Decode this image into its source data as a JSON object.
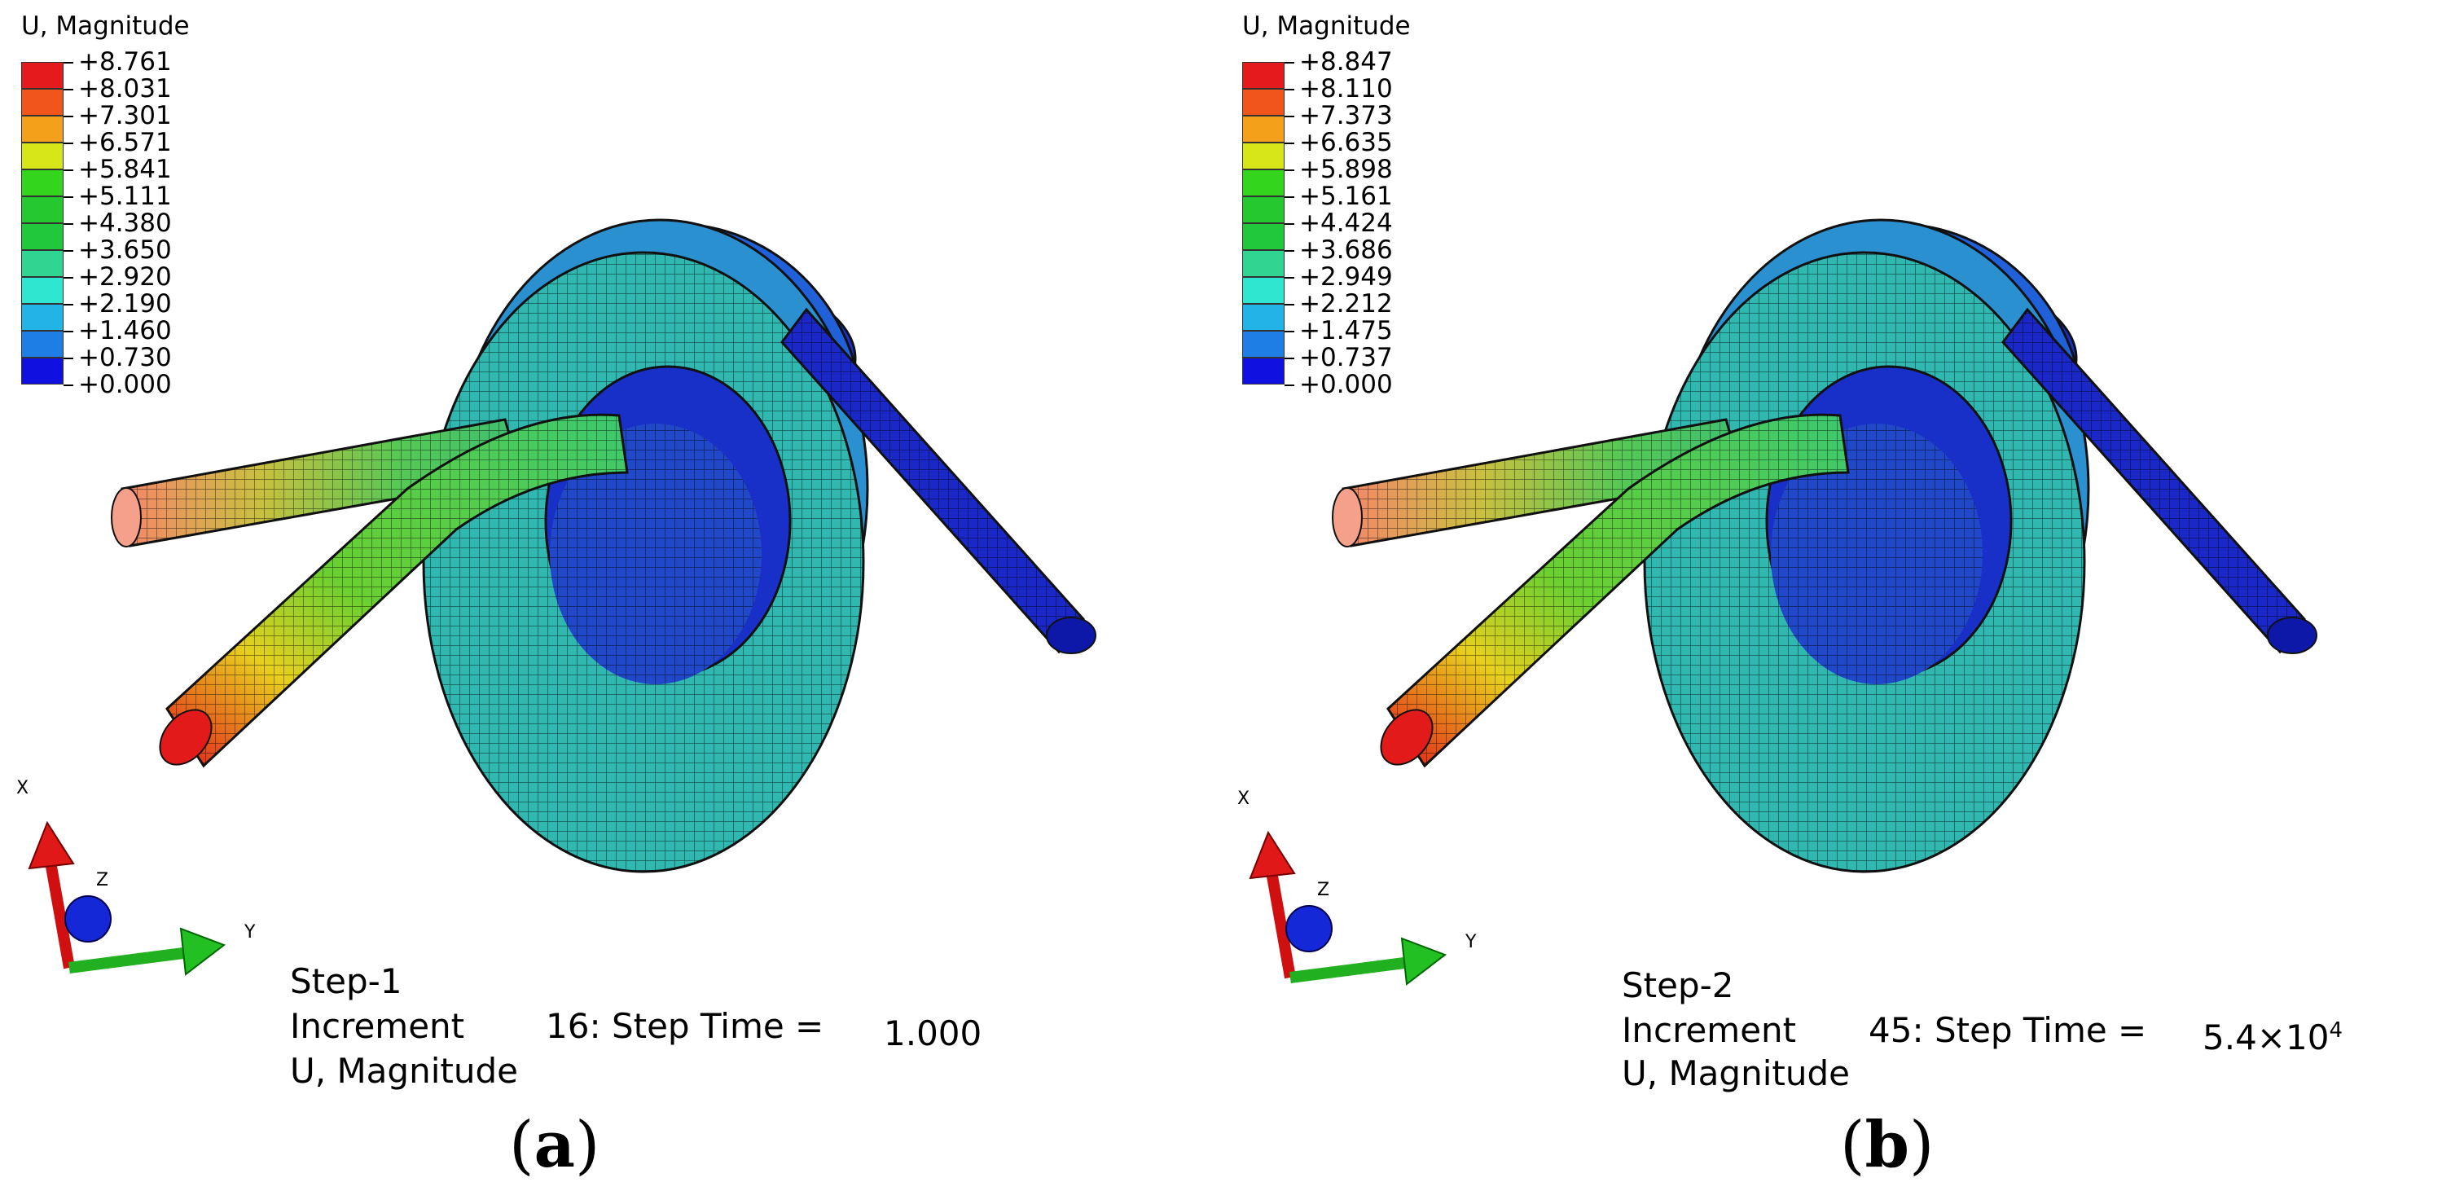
{
  "panels": [
    {
      "id": "a",
      "legend_title": "U, Magnitude",
      "legend_values": [
        "+8.761",
        "+8.031",
        "+7.301",
        "+6.571",
        "+5.841",
        "+5.111",
        "+4.380",
        "+3.650",
        "+2.920",
        "+2.190",
        "+1.460",
        "+0.730",
        "+0.000"
      ],
      "step": "Step-1",
      "increment_label": "Increment",
      "increment_text": "16: Step Time =",
      "step_time": "1.000",
      "step_time_exp": "",
      "variable": "U, Magnitude",
      "caption_open": "(",
      "caption_letter": "a",
      "caption_close": ")",
      "axes": {
        "x": "X",
        "y": "Y",
        "z": "Z"
      }
    },
    {
      "id": "b",
      "legend_title": "U, Magnitude",
      "legend_values": [
        "+8.847",
        "+8.110",
        "+7.373",
        "+6.635",
        "+5.898",
        "+5.161",
        "+4.424",
        "+3.686",
        "+2.949",
        "+2.212",
        "+1.475",
        "+0.737",
        "+0.000"
      ],
      "step": "Step-2",
      "increment_label": "Increment",
      "increment_text": "45: Step Time =",
      "step_time": "5.4×10",
      "step_time_exp": "4",
      "variable": "U, Magnitude",
      "caption_open": "(",
      "caption_letter": "b",
      "caption_close": ")",
      "axes": {
        "x": "X",
        "y": "Y",
        "z": "Z"
      }
    }
  ],
  "legend_colors": [
    "#e41a1c",
    "#f2551b",
    "#f4a01a",
    "#d6e619",
    "#33d61c",
    "#26c830",
    "#22c83c",
    "#2fd590",
    "#2fe6d0",
    "#22b4e6",
    "#1f7ee6",
    "#1f44e6",
    "#1010e0"
  ]
}
